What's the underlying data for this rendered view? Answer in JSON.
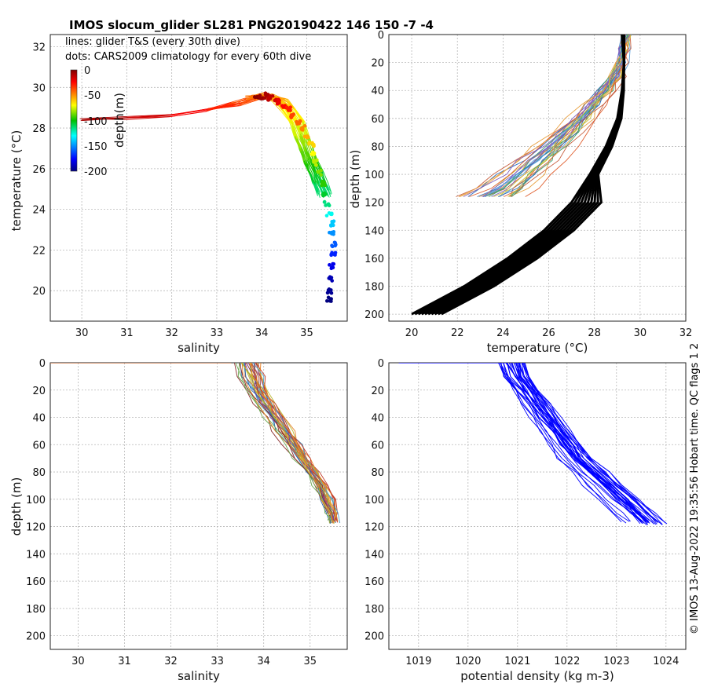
{
  "title": "IMOS slocum_glider SL281 PNG20190422 146  150   -7   -4",
  "side_note": "© IMOS 13-Aug-2022 19:35:56 Hobart time. QC flags 1  2",
  "notes": {
    "line1": "lines: glider T&S (every 30th dive)",
    "line2": "dots: CARS2009 climatology for every 60th dive"
  },
  "colorbar": {
    "label": "depth(m)",
    "ticks": [
      "0",
      "-50",
      "-100",
      "-150",
      "-200"
    ],
    "min": -200,
    "max": 0
  },
  "colors": {
    "density_line": "#0000ff",
    "climatology_line": "#000000",
    "salinity_profile_palette": [
      "#8b2e2e",
      "#d4602a",
      "#e0a030",
      "#b8b832",
      "#6aa84f",
      "#4aa0c8",
      "#2b6cb0",
      "#7a3fa0",
      "#c0392b",
      "#e67e22"
    ],
    "temp_profile_palette": [
      "#5aa0e0",
      "#e8a040",
      "#c86040",
      "#40a070",
      "#8060c0",
      "#d0c040",
      "#3070c0",
      "#e06030"
    ]
  },
  "chart_data": [
    {
      "id": "ts",
      "type": "scatter",
      "xlabel": "salinity",
      "ylabel": "temperature (°C)",
      "xlim": [
        29.3,
        35.9
      ],
      "ylim": [
        18.5,
        32.6
      ],
      "xticks": [
        30,
        31,
        32,
        33,
        34,
        35
      ],
      "yticks": [
        20,
        22,
        24,
        26,
        28,
        30,
        32
      ],
      "grid": true,
      "glider_ts_line": [
        [
          30.0,
          28.4
        ],
        [
          31.0,
          28.5
        ],
        [
          32.0,
          28.6
        ],
        [
          32.8,
          28.9
        ],
        [
          33.4,
          29.2
        ],
        [
          33.8,
          29.5
        ],
        [
          34.1,
          29.6
        ],
        [
          34.4,
          29.4
        ],
        [
          34.6,
          29.0
        ],
        [
          34.8,
          28.3
        ],
        [
          34.9,
          27.6
        ],
        [
          35.0,
          27.0
        ],
        [
          35.1,
          26.4
        ],
        [
          35.2,
          25.9
        ],
        [
          35.3,
          25.3
        ],
        [
          35.4,
          24.8
        ]
      ],
      "climatology_dots": [
        [
          33.9,
          29.6,
          -2
        ],
        [
          34.0,
          29.5,
          -5
        ],
        [
          34.1,
          29.6,
          -8
        ],
        [
          34.2,
          29.5,
          -12
        ],
        [
          34.3,
          29.4,
          -16
        ],
        [
          34.4,
          29.3,
          -20
        ],
        [
          34.5,
          29.1,
          -25
        ],
        [
          34.6,
          28.9,
          -30
        ],
        [
          34.7,
          28.6,
          -36
        ],
        [
          34.8,
          28.3,
          -42
        ],
        [
          34.9,
          28.0,
          -48
        ],
        [
          35.0,
          27.6,
          -55
        ],
        [
          35.1,
          27.2,
          -62
        ],
        [
          35.15,
          26.8,
          -70
        ],
        [
          35.2,
          26.3,
          -78
        ],
        [
          35.3,
          25.8,
          -85
        ],
        [
          35.35,
          25.3,
          -95
        ],
        [
          35.4,
          24.8,
          -105
        ],
        [
          35.45,
          24.3,
          -115
        ],
        [
          35.5,
          23.8,
          -128
        ],
        [
          35.55,
          23.3,
          -140
        ],
        [
          35.55,
          22.8,
          -150
        ],
        [
          35.6,
          22.3,
          -160
        ],
        [
          35.6,
          21.8,
          -170
        ],
        [
          35.55,
          21.2,
          -180
        ],
        [
          35.55,
          20.6,
          -190
        ],
        [
          35.5,
          20.0,
          -196
        ],
        [
          35.5,
          19.6,
          -200
        ]
      ]
    },
    {
      "id": "temp_depth",
      "type": "line",
      "xlabel": "temperature (°C)",
      "ylabel": "depth (m)",
      "xlim": [
        19,
        32
      ],
      "ylim": [
        205,
        0
      ],
      "xticks": [
        20,
        22,
        24,
        26,
        28,
        30,
        32
      ],
      "yticks": [
        0,
        20,
        40,
        60,
        80,
        100,
        120,
        140,
        160,
        180,
        200
      ],
      "grid": true,
      "glider_profile_template": [
        [
          29.4,
          0
        ],
        [
          29.3,
          10
        ],
        [
          29.2,
          20
        ],
        [
          29.0,
          30
        ],
        [
          28.6,
          40
        ],
        [
          28.1,
          50
        ],
        [
          27.6,
          60
        ],
        [
          27.0,
          70
        ],
        [
          26.4,
          80
        ],
        [
          25.8,
          90
        ],
        [
          25.1,
          100
        ],
        [
          24.4,
          110
        ],
        [
          23.8,
          116
        ]
      ],
      "climatology_profile_template": [
        [
          29.3,
          0
        ],
        [
          29.3,
          20
        ],
        [
          29.2,
          40
        ],
        [
          29.0,
          60
        ],
        [
          28.5,
          80
        ],
        [
          27.8,
          100
        ],
        [
          27.0,
          120
        ],
        [
          25.8,
          140
        ],
        [
          24.2,
          160
        ],
        [
          22.3,
          180
        ],
        [
          20.0,
          200
        ]
      ]
    },
    {
      "id": "sal_depth",
      "type": "line",
      "xlabel": "salinity",
      "ylabel": "depth (m)",
      "xlim": [
        29.4,
        35.8
      ],
      "ylim": [
        210,
        0
      ],
      "xticks": [
        30,
        31,
        32,
        33,
        34,
        35
      ],
      "yticks": [
        0,
        20,
        40,
        60,
        80,
        100,
        120,
        140,
        160,
        180,
        200
      ],
      "grid": true,
      "surface_line": [
        [
          29.4,
          0
        ],
        [
          33.3,
          0
        ]
      ],
      "glider_profile_template": [
        [
          33.6,
          0
        ],
        [
          33.7,
          10
        ],
        [
          33.8,
          20
        ],
        [
          34.0,
          30
        ],
        [
          34.2,
          40
        ],
        [
          34.4,
          50
        ],
        [
          34.6,
          60
        ],
        [
          34.8,
          70
        ],
        [
          35.0,
          80
        ],
        [
          35.2,
          90
        ],
        [
          35.35,
          100
        ],
        [
          35.45,
          110
        ],
        [
          35.5,
          115
        ]
      ]
    },
    {
      "id": "dens_depth",
      "type": "line",
      "xlabel": "potential density (kg m-3)",
      "ylabel": "",
      "xlim": [
        1018.4,
        1024.4
      ],
      "ylim": [
        210,
        0
      ],
      "xticks": [
        1019,
        1020,
        1021,
        1022,
        1023,
        1024
      ],
      "yticks": [
        0,
        20,
        40,
        60,
        80,
        100,
        120,
        140,
        160,
        180,
        200
      ],
      "grid": true,
      "surface_line": [
        [
          1018.6,
          0
        ],
        [
          1020.8,
          0
        ]
      ],
      "glider_profile_template": [
        [
          1020.9,
          0
        ],
        [
          1021.0,
          10
        ],
        [
          1021.2,
          20
        ],
        [
          1021.4,
          30
        ],
        [
          1021.6,
          40
        ],
        [
          1021.8,
          50
        ],
        [
          1022.0,
          60
        ],
        [
          1022.2,
          70
        ],
        [
          1022.5,
          80
        ],
        [
          1022.8,
          90
        ],
        [
          1023.1,
          100
        ],
        [
          1023.4,
          110
        ],
        [
          1023.6,
          116
        ]
      ]
    }
  ]
}
